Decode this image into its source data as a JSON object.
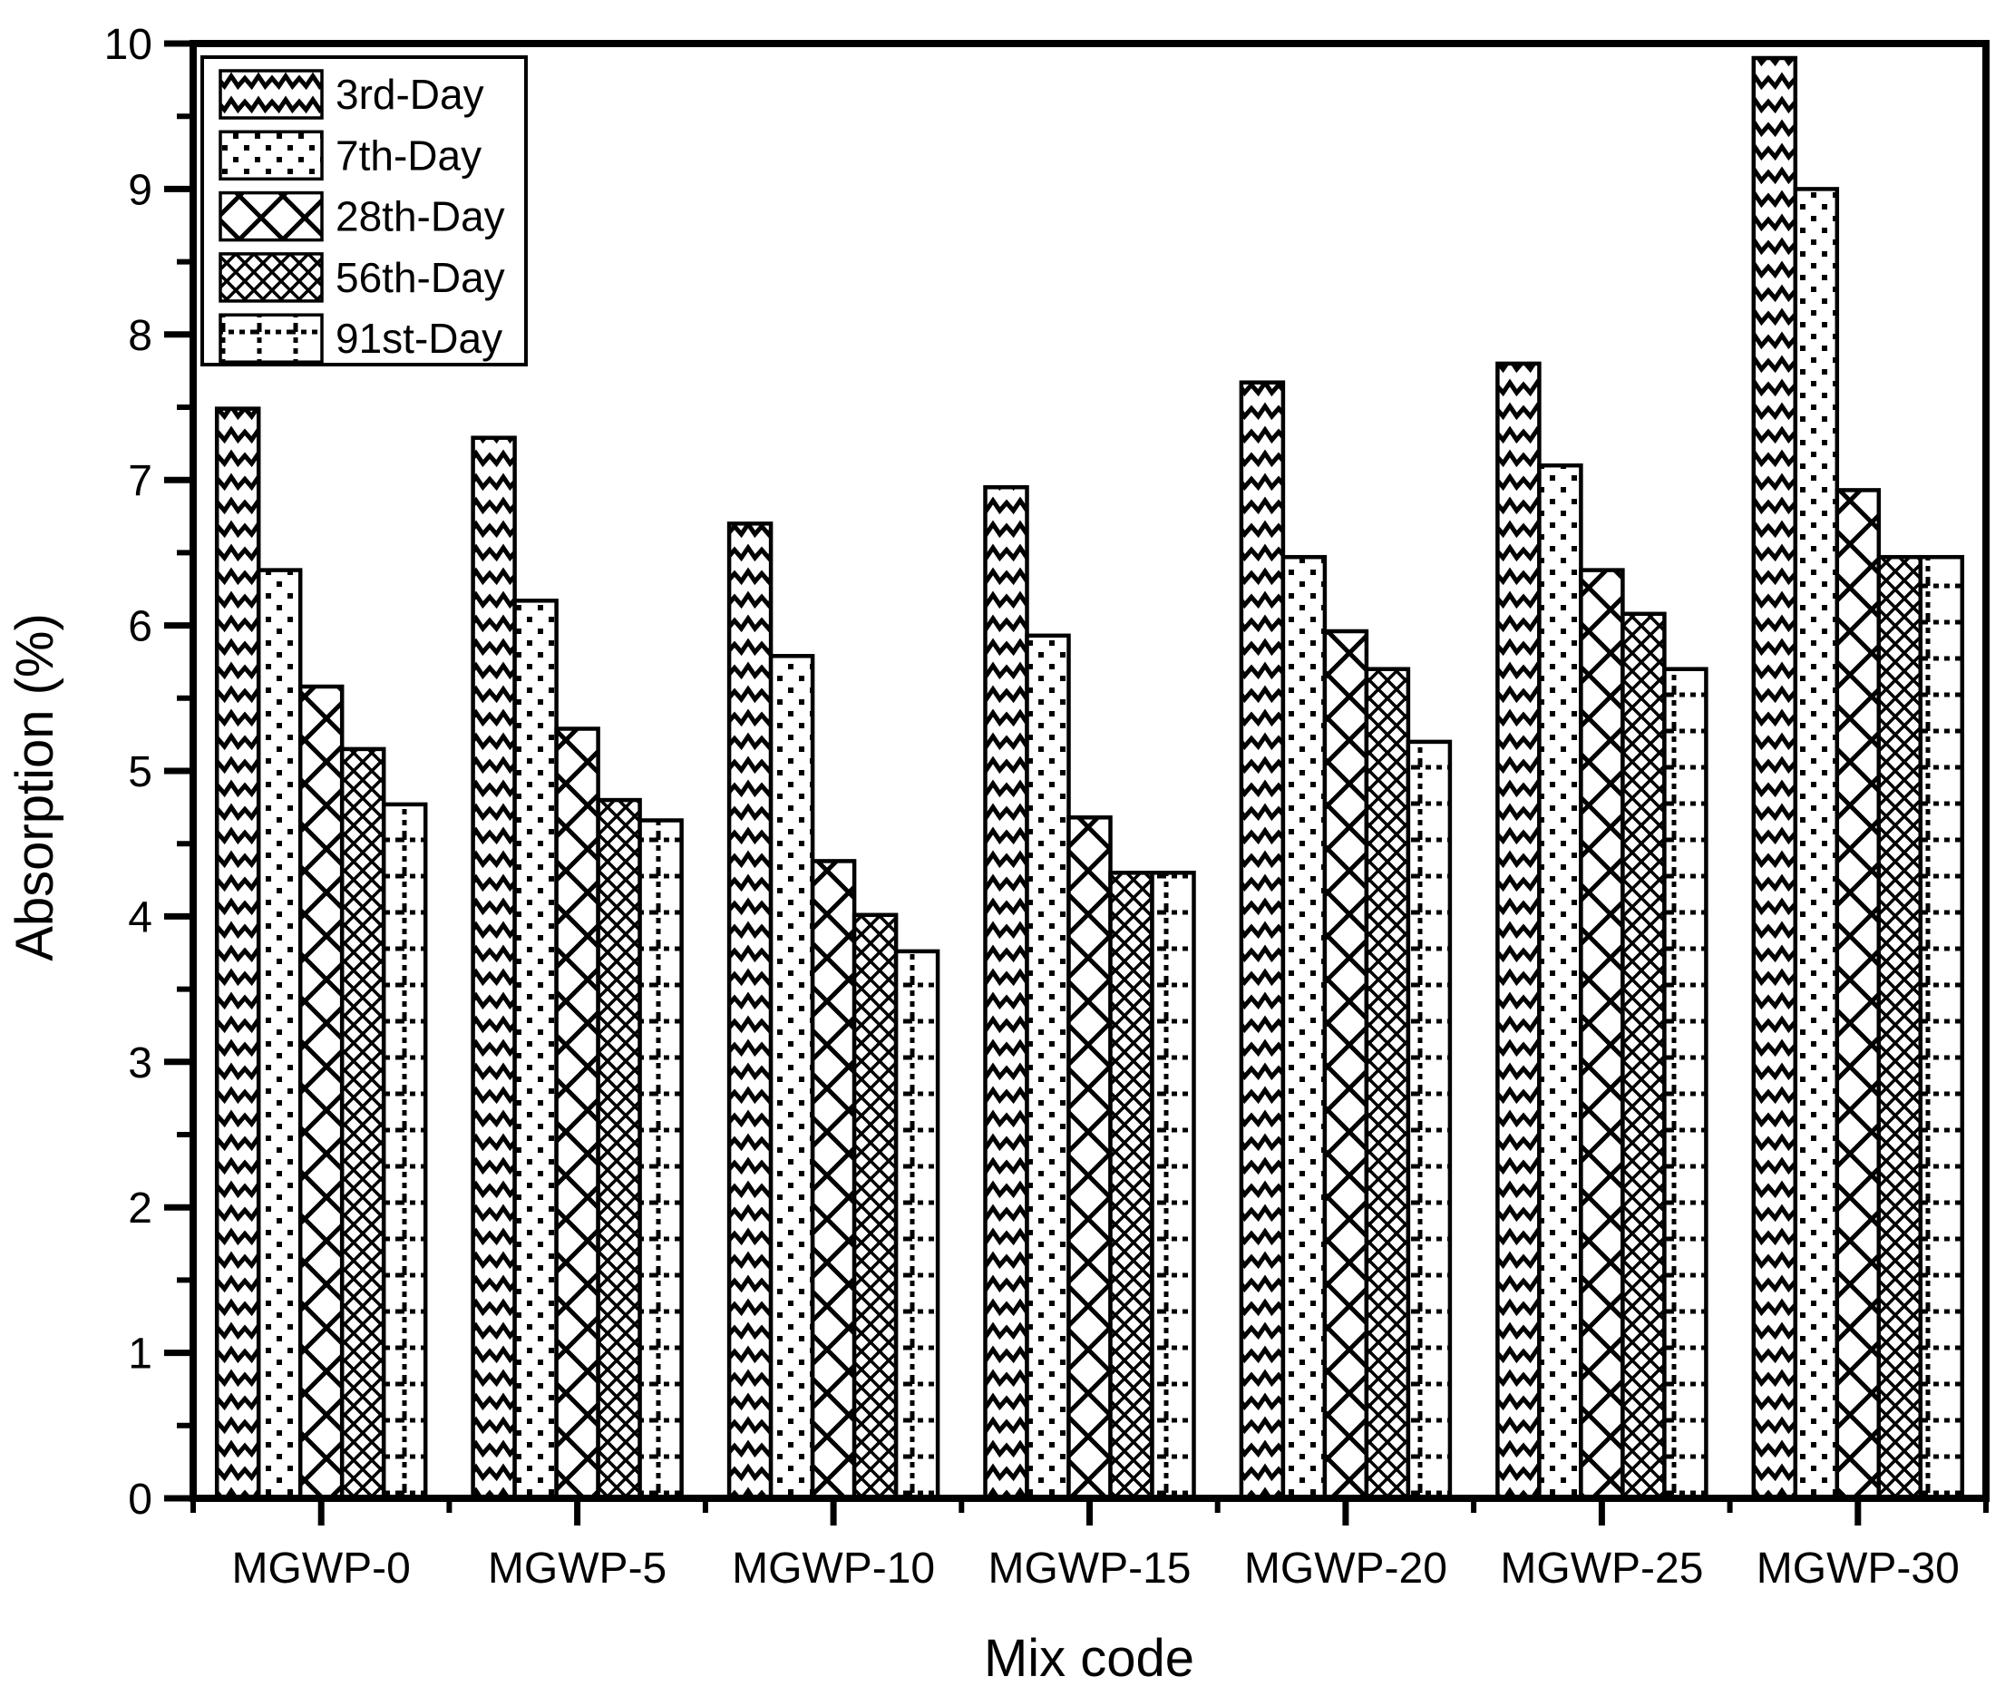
{
  "chart_data": {
    "type": "bar",
    "title": "",
    "xlabel": "Mix code",
    "ylabel": "Absorption (%)",
    "categories": [
      "MGWP-0",
      "MGWP-5",
      "MGWP-10",
      "MGWP-15",
      "MGWP-20",
      "MGWP-25",
      "MGWP-30"
    ],
    "series": [
      {
        "name": "3rd-Day",
        "pattern": "wave",
        "values": [
          7.49,
          7.29,
          6.7,
          6.95,
          7.67,
          7.8,
          9.9
        ]
      },
      {
        "name": "7th-Day",
        "pattern": "dots",
        "values": [
          6.38,
          6.17,
          5.79,
          5.93,
          6.47,
          7.1,
          9.0
        ]
      },
      {
        "name": "28th-Day",
        "pattern": "diagwide",
        "values": [
          5.58,
          5.29,
          4.38,
          4.68,
          5.96,
          6.38,
          6.93
        ]
      },
      {
        "name": "56th-Day",
        "pattern": "diagdense",
        "values": [
          5.15,
          4.8,
          4.01,
          4.3,
          5.7,
          6.08,
          6.47
        ]
      },
      {
        "name": "91st-Day",
        "pattern": "grid",
        "values": [
          4.77,
          4.66,
          3.76,
          4.3,
          5.2,
          5.7,
          6.47
        ]
      }
    ],
    "ylim": [
      0,
      10
    ],
    "y_major_step": 1,
    "y_minor_step": 0.5,
    "y_tick_labels": [
      "0",
      "1",
      "2",
      "3",
      "4",
      "5",
      "6",
      "7",
      "8",
      "9",
      "10"
    ],
    "legend_position": "top-left",
    "grid": false,
    "colors": {
      "foreground": "#000000",
      "background": "#ffffff"
    }
  }
}
